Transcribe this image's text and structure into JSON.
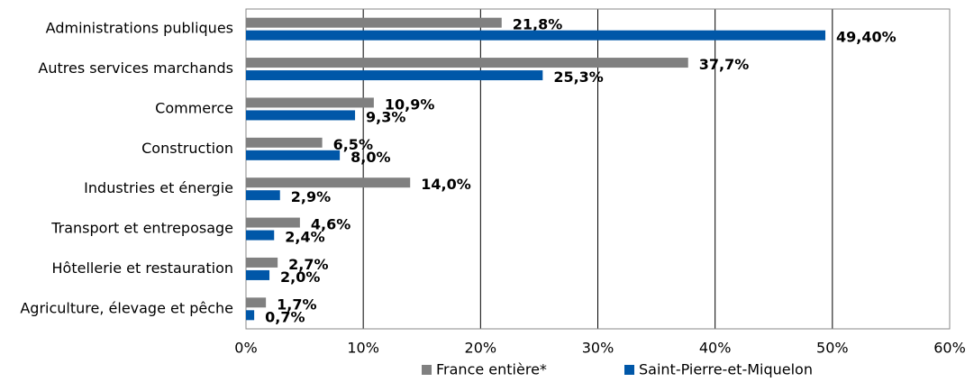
{
  "chart_data": {
    "type": "hbar",
    "categories": [
      "Administrations publiques",
      "Autres services marchands",
      "Commerce",
      "Construction",
      "Industries et énergie",
      "Transport et entreposage",
      "Hôtellerie et restauration",
      "Agriculture, élevage et pêche"
    ],
    "series": [
      {
        "name": "France entière*",
        "color": "#808080",
        "values": [
          21.8,
          37.7,
          10.9,
          6.5,
          14.0,
          4.6,
          2.7,
          1.7
        ],
        "value_labels": [
          "21,8%",
          "37,7%",
          "10,9%",
          "6,5%",
          "14,0%",
          "4,6%",
          "2,7%",
          "1,7%"
        ]
      },
      {
        "name": "Saint-Pierre-et-Miquelon",
        "color": "#0057a8",
        "values": [
          49.4,
          25.3,
          9.3,
          8.0,
          2.9,
          2.4,
          2.0,
          0.7
        ],
        "value_labels": [
          "49,40%",
          "25,3%",
          "9,3%",
          "8,0%",
          "2,9%",
          "2,4%",
          "2,0%",
          "0,7%"
        ]
      }
    ],
    "xlim": [
      0,
      60
    ],
    "xticks": [
      {
        "value": 0,
        "label": "0%"
      },
      {
        "value": 10,
        "label": "10%"
      },
      {
        "value": 20,
        "label": "20%"
      },
      {
        "value": 30,
        "label": "30%"
      },
      {
        "value": 40,
        "label": "40%"
      },
      {
        "value": 50,
        "label": "50%"
      },
      {
        "value": 60,
        "label": "60%"
      }
    ],
    "grid": true,
    "legend": "bottom"
  }
}
